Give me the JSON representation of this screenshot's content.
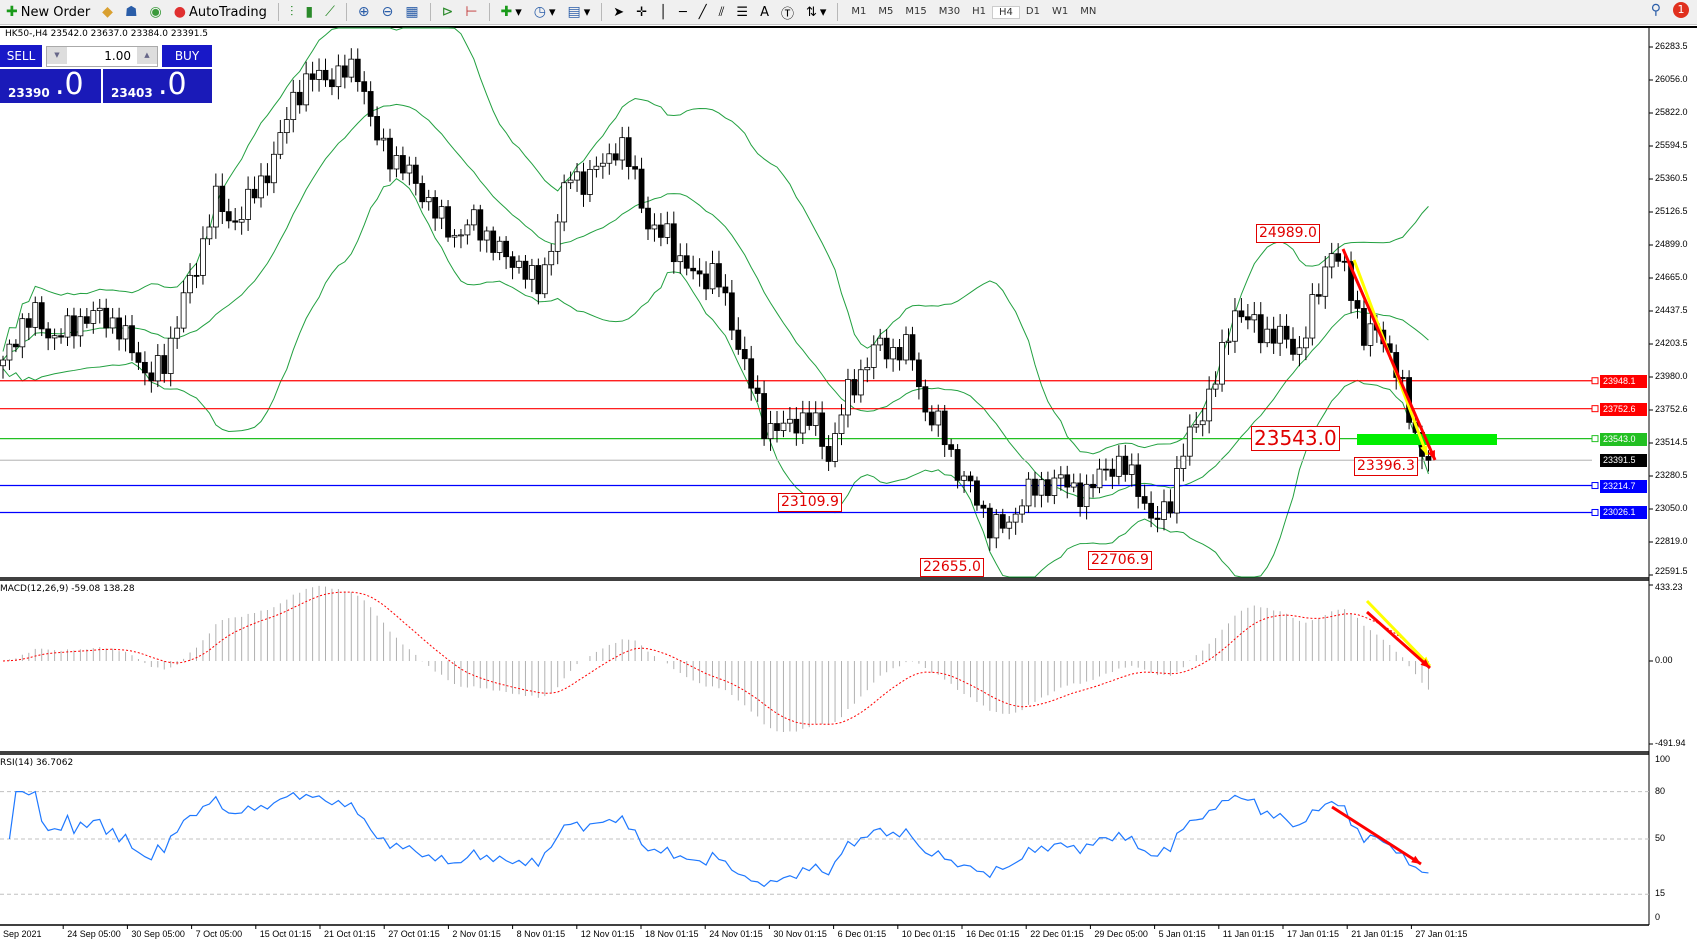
{
  "toolbar": {
    "new_order": "New Order",
    "autotrading": "AutoTrading",
    "timeframes": [
      "M1",
      "M5",
      "M15",
      "M30",
      "H1",
      "H4",
      "D1",
      "W1",
      "MN"
    ],
    "active_timeframe": "H4",
    "notifications": "1"
  },
  "chart": {
    "symbol_info": "HK50-,H4  23542.0 23637.0 23384.0 23391.5"
  },
  "trade_panel": {
    "sell": "SELL",
    "buy": "BUY",
    "lot": "1.00",
    "sell_small": "23390",
    "sell_big": ".0",
    "buy_small": "23403",
    "buy_big": ".0"
  },
  "price_axis": [
    "26283.5",
    "26056.0",
    "25822.0",
    "25594.5",
    "25360.5",
    "25126.5",
    "24899.0",
    "24665.0",
    "24437.5",
    "24203.5",
    "23980.0",
    "23752.6",
    "23514.5",
    "23280.5",
    "23050.0",
    "22819.0",
    "22591.5"
  ],
  "levels": [
    {
      "price": "23948.1",
      "color": "#ff0000"
    },
    {
      "price": "23752.6",
      "color": "#ff0000"
    },
    {
      "price": "23543.0",
      "color": "#22c022"
    },
    {
      "price": "23391.5",
      "color": "#000000"
    },
    {
      "price": "23214.7",
      "color": "#0000ff"
    },
    {
      "price": "23026.1",
      "color": "#0000ff"
    }
  ],
  "annotations": [
    "24989.0",
    "23543.0",
    "23396.3",
    "23109.9",
    "22655.0",
    "22706.9"
  ],
  "price_path": [
    24053,
    24330,
    24400,
    24250,
    24300,
    24400,
    24400,
    24350,
    24150,
    23980,
    24053,
    24505,
    24731,
    25259,
    25033,
    25180,
    25334,
    25600,
    25950,
    26070,
    26070,
    26100,
    26125,
    25636,
    25520,
    25400,
    25250,
    25070,
    24957,
    25070,
    24950,
    24800,
    24769,
    24580,
    24957,
    25409,
    25330,
    25480,
    25598,
    25400,
    24957,
    24995,
    24731,
    24680,
    24700,
    24355,
    23978,
    23640,
    23600,
    23677,
    23677,
    23413,
    23827,
    24015,
    24203,
    24150,
    24180,
    23714,
    23601,
    23300,
    23149,
    22923,
    22923,
    23149,
    23200,
    23260,
    23200,
    23150,
    23350,
    23350,
    23250,
    22923,
    23100,
    23500,
    23720,
    24000,
    24450,
    24350,
    24279,
    24250,
    24150,
    24500,
    24882,
    24656,
    24279,
    24279,
    24053,
    23600,
    23391.5
  ],
  "macd": {
    "label": "MACD(12,26,9) -59.08 138.28",
    "max": "433.23",
    "zero": "0.00",
    "min": "-491.94"
  },
  "rsi": {
    "label": "RSI(14) 36.7062",
    "levels": [
      "100",
      "80",
      "50",
      "15",
      "0"
    ]
  },
  "dates": [
    "Sep 2021",
    "24 Sep 05:00",
    "30 Sep 05:00",
    "7 Oct 05:00",
    "15 Oct 01:15",
    "21 Oct 01:15",
    "27 Oct 01:15",
    "2 Nov 01:15",
    "8 Nov 01:15",
    "12 Nov 01:15",
    "18 Nov 01:15",
    "24 Nov 01:15",
    "30 Nov 01:15",
    "6 Dec 01:15",
    "10 Dec 01:15",
    "16 Dec 01:15",
    "22 Dec 01:15",
    "29 Dec 05:00",
    "5 Jan 01:15",
    "11 Jan 01:15",
    "17 Jan 01:15",
    "21 Jan 01:15",
    "27 Jan 01:15"
  ],
  "colors": {
    "bands": "#22a040",
    "rsi": "#1e78ff",
    "signal": "#ff0000",
    "arrow_red": "#ff0000",
    "arrow_yellow": "#ffff00",
    "zone": "#00ee00"
  }
}
